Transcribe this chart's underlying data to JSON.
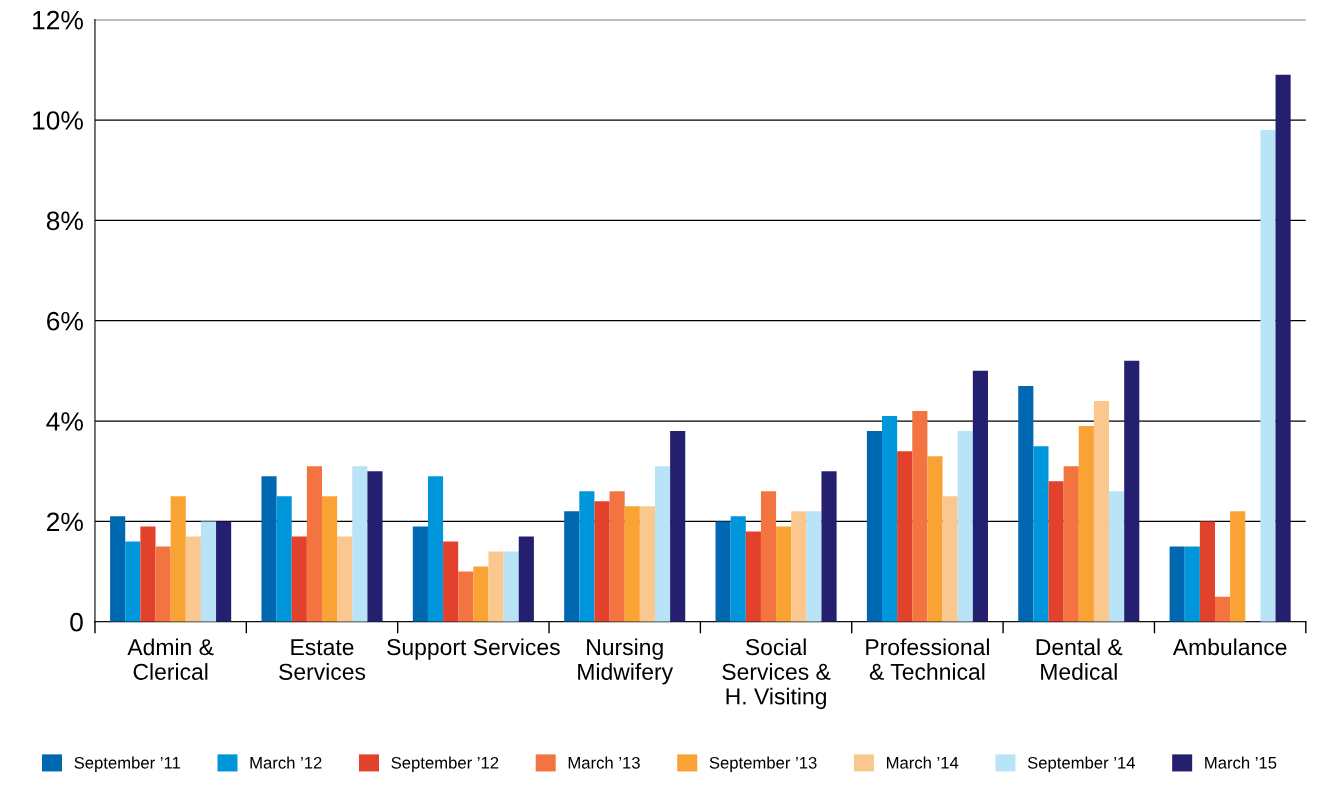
{
  "chart_data": {
    "type": "bar",
    "categories": [
      "Admin &\nClerical",
      "Estate\nServices",
      "Support Services",
      "Nursing\nMidwifery",
      "Social\nServices &\nH. Visiting",
      "Professional\n& Technical",
      "Dental &\nMedical",
      "Ambulance"
    ],
    "series": [
      {
        "name": "September ’11",
        "color": "#0067b1",
        "values": [
          2.1,
          2.9,
          1.9,
          2.2,
          2.0,
          3.8,
          4.7,
          1.5
        ]
      },
      {
        "name": "March ’12",
        "color": "#0096db",
        "values": [
          1.6,
          2.5,
          2.9,
          2.6,
          2.1,
          4.1,
          3.5,
          1.5
        ]
      },
      {
        "name": "September ’12",
        "color": "#e2412b",
        "values": [
          1.9,
          1.7,
          1.6,
          2.4,
          1.8,
          3.4,
          2.8,
          2.0
        ]
      },
      {
        "name": "March ’13",
        "color": "#f37440",
        "values": [
          1.5,
          3.1,
          1.0,
          2.6,
          2.6,
          4.2,
          3.1,
          0.5
        ]
      },
      {
        "name": "September ’13",
        "color": "#f8a333",
        "values": [
          2.5,
          2.5,
          1.1,
          2.3,
          1.9,
          3.3,
          3.9,
          2.2
        ]
      },
      {
        "name": "March ’14",
        "color": "#fac88f",
        "values": [
          1.7,
          1.7,
          1.4,
          2.3,
          2.2,
          2.5,
          4.4,
          null
        ]
      },
      {
        "name": "September ’14",
        "color": "#b9e3f6",
        "values": [
          2.0,
          3.1,
          1.4,
          3.1,
          2.2,
          3.8,
          2.6,
          9.8
        ]
      },
      {
        "name": "March ’15",
        "color": "#24206f",
        "values": [
          2.0,
          3.0,
          1.7,
          3.8,
          3.0,
          5.0,
          5.2,
          10.9
        ]
      }
    ],
    "ylim": [
      0,
      12
    ],
    "yticks": [
      0,
      {
        "value": 2,
        "label": "2%"
      },
      {
        "value": 4,
        "label": "4%"
      },
      {
        "value": 6,
        "label": "6%"
      },
      {
        "value": 8,
        "label": "8%"
      },
      {
        "value": 10,
        "label": "10%"
      },
      {
        "value": 12,
        "label": "12%"
      }
    ],
    "grid": "y",
    "legend": "bottom"
  }
}
